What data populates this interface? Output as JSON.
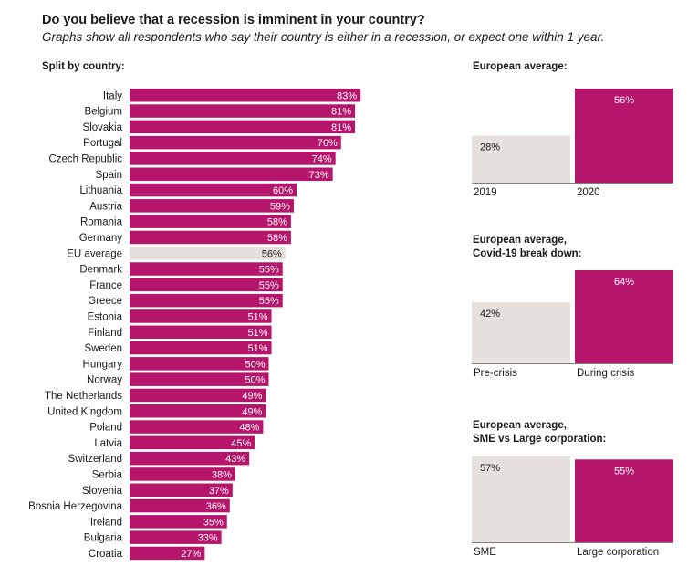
{
  "header": {
    "title": "Do you believe that a recession is imminent in your country?",
    "subtitle": "Graphs show all respondents who say their country is either in a recession, or expect one within 1 year."
  },
  "colors": {
    "primary": "#b5156b",
    "neutral": "#e6e1dc",
    "text": "#1a1a1a"
  },
  "chart_data": [
    {
      "type": "bar",
      "orientation": "horizontal",
      "title": "Split by country:",
      "categories": [
        "Italy",
        "Belgium",
        "Slovakia",
        "Portugal",
        "Czech Republic",
        "Spain",
        "Lithuania",
        "Austria",
        "Romania",
        "Germany",
        "EU average",
        "Denmark",
        "France",
        "Greece",
        "Estonia",
        "Finland",
        "Sweden",
        "Hungary",
        "Norway",
        "The Netherlands",
        "United Kingdom",
        "Poland",
        "Latvia",
        "Switzerland",
        "Serbia",
        "Slovenia",
        "Bosnia Herzegovina",
        "Ireland",
        "Bulgaria",
        "Croatia"
      ],
      "values": [
        83,
        81,
        81,
        76,
        74,
        73,
        60,
        59,
        58,
        58,
        56,
        55,
        55,
        55,
        51,
        51,
        51,
        50,
        50,
        49,
        49,
        48,
        45,
        43,
        38,
        37,
        36,
        35,
        33,
        27
      ],
      "value_labels": [
        "83%",
        "81%",
        "81%",
        "76%",
        "74%",
        "73%",
        "60%",
        "59%",
        "58%",
        "58%",
        "56%",
        "55%",
        "55%",
        "55%",
        "51%",
        "51%",
        "51%",
        "50%",
        "50%",
        "49%",
        "49%",
        "48%",
        "45%",
        "43%",
        "38%",
        "37%",
        "36%",
        "35%",
        "33%",
        "27%"
      ],
      "highlight": "EU average",
      "xlim": [
        0,
        100
      ]
    },
    {
      "type": "bar",
      "title": "European average:",
      "categories": [
        "2019",
        "2020"
      ],
      "values": [
        28,
        56
      ],
      "value_labels": [
        "28%",
        "56%"
      ],
      "series_colors": [
        "neutral",
        "primary"
      ],
      "ylim": [
        0,
        56
      ]
    },
    {
      "type": "bar",
      "title": "European average,",
      "title_line2": "Covid-19 break down:",
      "categories": [
        "Pre-crisis",
        "During crisis"
      ],
      "values": [
        42,
        64
      ],
      "value_labels": [
        "42%",
        "64%"
      ],
      "series_colors": [
        "neutral",
        "primary"
      ],
      "ylim": [
        0,
        64
      ]
    },
    {
      "type": "bar",
      "title": "European average,",
      "title_line2": "SME vs Large corporation:",
      "categories": [
        "SME",
        "Large corporation"
      ],
      "values": [
        57,
        55
      ],
      "value_labels": [
        "57%",
        "55%"
      ],
      "series_colors": [
        "neutral",
        "primary"
      ],
      "ylim": [
        0,
        57
      ]
    }
  ]
}
